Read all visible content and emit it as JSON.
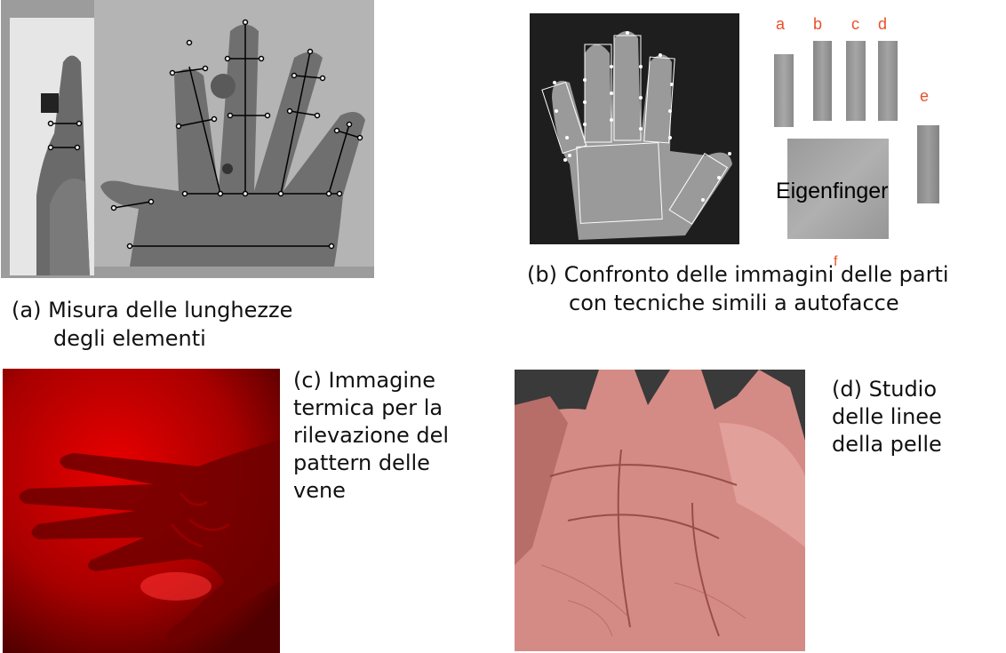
{
  "figure_a": {
    "caption_line1": "(a) Misura delle lunghezze",
    "caption_line2": "degli elementi",
    "image_alt": "hand-geometry-photo"
  },
  "figure_b": {
    "caption_line1": "(b) Confronto delle immagini delle parti",
    "caption_line2": "con tecniche simili a autofacce",
    "eigen_label": "Eigenfinger",
    "part_labels": [
      "a",
      "b",
      "c",
      "d",
      "e",
      "f"
    ]
  },
  "figure_c": {
    "caption": "(c) Immagine\ntermica per la\nrilevazione del\npattern delle\nvene"
  },
  "figure_d": {
    "caption": "(d) Studio\ndelle linee\ndella pelle"
  },
  "colors": {
    "label_orange": "#e8502a",
    "thermal_red": "#c40000",
    "skin_pink": "#d98a85"
  }
}
